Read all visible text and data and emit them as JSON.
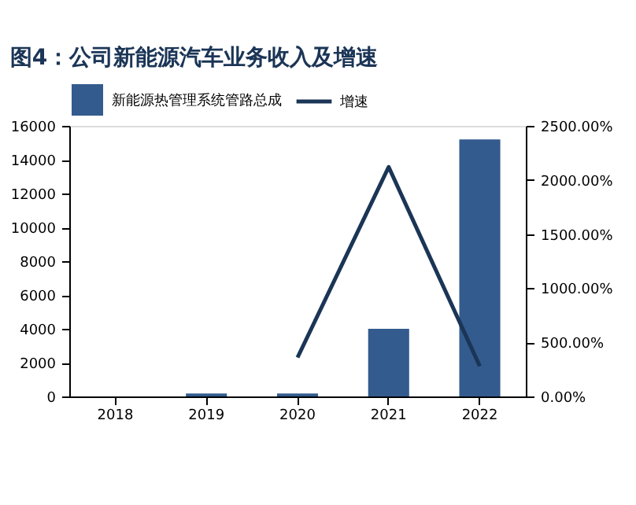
{
  "chart_data": {
    "type": "bar",
    "title": "图4：公司新能源汽车业务收入及增速",
    "categories": [
      "2018",
      "2019",
      "2020",
      "2021",
      "2022"
    ],
    "series": [
      {
        "name": "新能源热管理系统管路总成",
        "color": "#335b8e",
        "values": [
          0,
          180,
          180,
          4000,
          15200
        ]
      },
      {
        "name": "增速",
        "type": "line",
        "axis": "y2",
        "color": "#1b3556",
        "values": [
          null,
          null,
          360,
          2120,
          280
        ]
      }
    ],
    "ylim": [
      0,
      16000
    ],
    "yticks": [
      0,
      2000,
      4000,
      6000,
      8000,
      10000,
      12000,
      14000,
      16000
    ],
    "y2lim": [
      0,
      2500
    ],
    "y2ticks": [
      {
        "value": 0,
        "label": "0.00%"
      },
      {
        "value": 500,
        "label": "500.00%"
      },
      {
        "value": 1000,
        "label": "1000.00%"
      },
      {
        "value": 1500,
        "label": "1500.00%"
      },
      {
        "value": 2000,
        "label": "2000.00%"
      },
      {
        "value": 2500,
        "label": "2500.00%"
      }
    ],
    "grid": false,
    "legend": "top",
    "line_style": "solid",
    "marker": "none"
  }
}
